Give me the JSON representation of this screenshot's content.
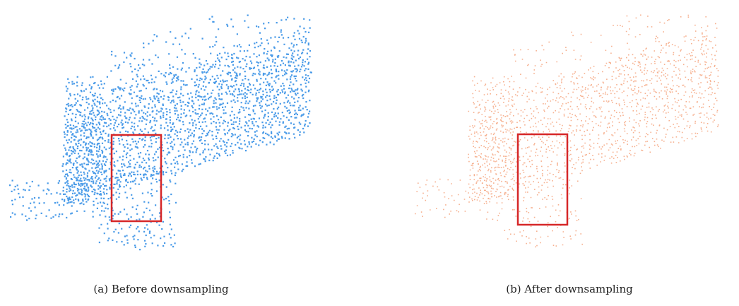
{
  "panels": [
    {
      "caption": "(a) Before downsampling"
    },
    {
      "caption": "(b) After downsampling"
    }
  ]
}
